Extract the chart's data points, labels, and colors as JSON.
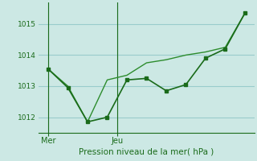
{
  "line1_x": [
    0,
    1,
    2,
    3,
    4,
    5,
    6,
    7,
    8,
    9,
    10
  ],
  "line1_y": [
    1013.55,
    1012.95,
    1011.85,
    1012.0,
    1013.2,
    1013.25,
    1012.85,
    1013.05,
    1013.9,
    1014.2,
    1015.35
  ],
  "line2_x": [
    0,
    1,
    2,
    3,
    4,
    5,
    6,
    7,
    8,
    9,
    10
  ],
  "line2_y": [
    1013.55,
    1013.0,
    1011.85,
    1013.2,
    1013.35,
    1013.75,
    1013.85,
    1014.0,
    1014.1,
    1014.25,
    1015.35
  ],
  "line_color1": "#1a6b1a",
  "line_color2": "#2d8c2d",
  "bg_color": "#cce8e4",
  "grid_color": "#99cccc",
  "xlabel": "Pression niveau de la mer( hPa )",
  "yticks": [
    1012,
    1013,
    1014,
    1015
  ],
  "ylim": [
    1011.5,
    1015.7
  ],
  "xlim": [
    -0.5,
    10.5
  ],
  "mer_x": 0,
  "jeu_x": 3.5,
  "xtick_positions": [
    0,
    3.5
  ],
  "xtick_labels": [
    "Mer",
    "Jeu"
  ]
}
